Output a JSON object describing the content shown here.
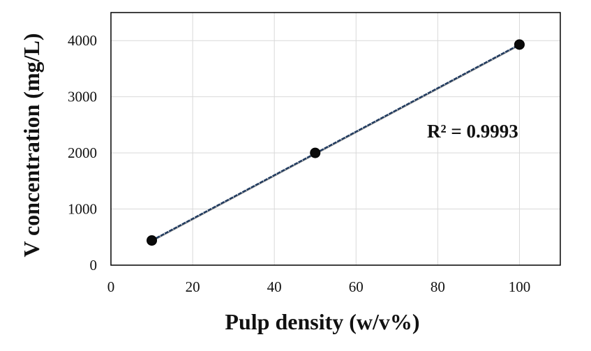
{
  "chart_data": {
    "type": "scatter",
    "xlabel": "Pulp density (w/v%)",
    "ylabel": "V concentration (mg/L)",
    "xlim": [
      0,
      110
    ],
    "ylim": [
      0,
      4500
    ],
    "xticks": [
      0,
      20,
      40,
      60,
      80,
      100
    ],
    "yticks": [
      0,
      1000,
      2000,
      3000,
      4000
    ],
    "grid": true,
    "series": [
      {
        "x": [
          10,
          50,
          100
        ],
        "y": [
          440,
          2000,
          3930
        ],
        "color": "#0a0a0a"
      }
    ],
    "trendline": {
      "type": "linear",
      "x": [
        10,
        100
      ],
      "y": [
        440,
        3930
      ],
      "color": "#1f3a5f"
    },
    "annotations": [
      {
        "text": "R² = 0.9993"
      }
    ]
  }
}
